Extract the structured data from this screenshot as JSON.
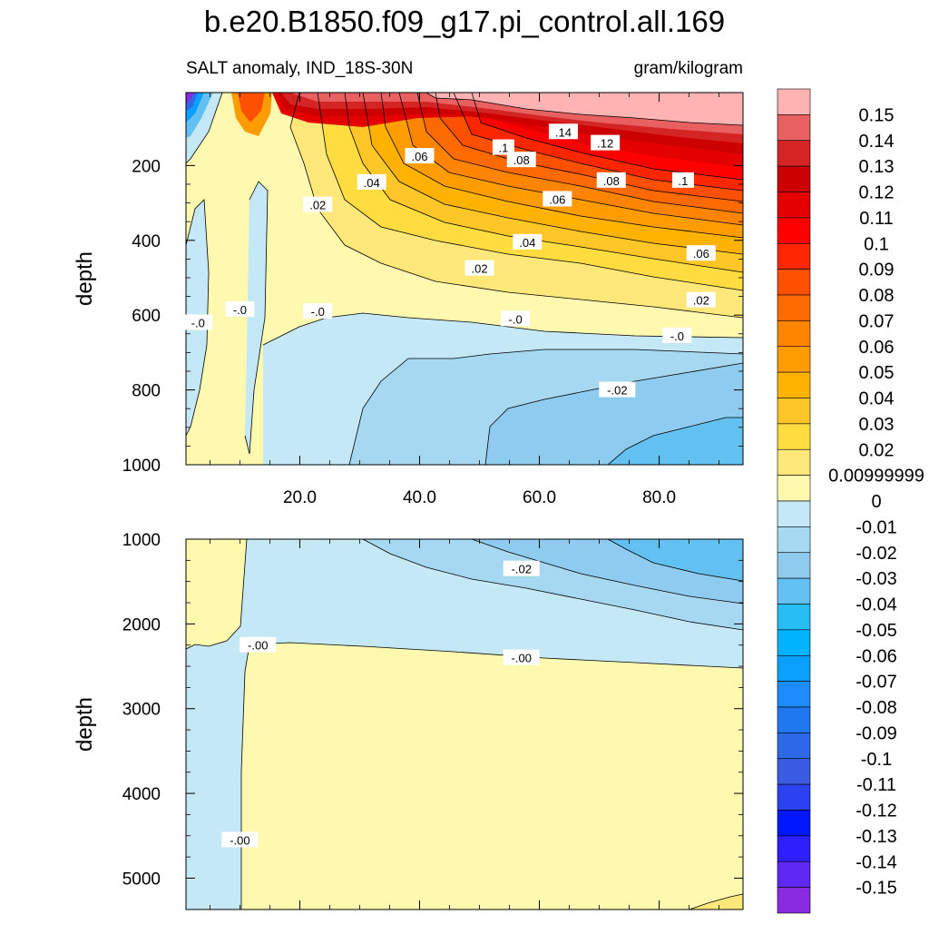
{
  "title": "b.e20.B1850.f09_g17.pi_control.all.169",
  "subtitle_left": "SALT anomaly, IND_18S-30N",
  "subtitle_right": "gram/kilogram",
  "chart_data": [
    {
      "type": "heatmap",
      "panel": "upper",
      "ylabel": "depth",
      "xlabel": "",
      "xlim": [
        1,
        94
      ],
      "ylim": [
        1000,
        5
      ],
      "x_ticks": [
        "20.0",
        "40.0",
        "60.0",
        "80.0"
      ],
      "x_tick_values": [
        20,
        40,
        60,
        80
      ],
      "y_ticks": [
        "200",
        "400",
        "600",
        "800",
        "1000"
      ],
      "y_tick_values": [
        200,
        400,
        600,
        800,
        1000
      ],
      "contour_labels": [
        {
          "text": ".14",
          "x": 64,
          "y": 110
        },
        {
          "text": ".12",
          "x": 71,
          "y": 140
        },
        {
          "text": ".1",
          "x": 54,
          "y": 152
        },
        {
          "text": ".08",
          "x": 57,
          "y": 185
        },
        {
          "text": ".06",
          "x": 40,
          "y": 175
        },
        {
          "text": ".04",
          "x": 32,
          "y": 245
        },
        {
          "text": ".02",
          "x": 23,
          "y": 305
        },
        {
          "text": ".08",
          "x": 72,
          "y": 240
        },
        {
          "text": ".1",
          "x": 84,
          "y": 240
        },
        {
          "text": ".06",
          "x": 63,
          "y": 290
        },
        {
          "text": ".04",
          "x": 58,
          "y": 405
        },
        {
          "text": ".06",
          "x": 87,
          "y": 435
        },
        {
          "text": ".02",
          "x": 50,
          "y": 475
        },
        {
          "text": ".02",
          "x": 87,
          "y": 560
        },
        {
          "text": "-.0",
          "x": 3,
          "y": 620
        },
        {
          "text": "-.0",
          "x": 10,
          "y": 585
        },
        {
          "text": "-.0",
          "x": 23,
          "y": 590
        },
        {
          "text": "-.0",
          "x": 56,
          "y": 610
        },
        {
          "text": "-.0",
          "x": 83,
          "y": 655
        },
        {
          "text": "-.02",
          "x": 73,
          "y": 800
        }
      ]
    },
    {
      "type": "heatmap",
      "panel": "lower",
      "ylabel": "depth",
      "xlabel": "",
      "xlim": [
        1,
        94
      ],
      "ylim": [
        5370,
        1000
      ],
      "y_ticks": [
        "1000",
        "2000",
        "3000",
        "4000",
        "5000"
      ],
      "y_tick_values": [
        1000,
        2000,
        3000,
        4000,
        5000
      ],
      "contour_labels": [
        {
          "text": "-.02",
          "x": 57,
          "y": 1350
        },
        {
          "text": "-.00",
          "x": 13,
          "y": 2250
        },
        {
          "text": "-.00",
          "x": 57,
          "y": 2400
        },
        {
          "text": "-.00",
          "x": 10,
          "y": 4550
        }
      ]
    }
  ],
  "colorbar": {
    "labels": [
      "0.15",
      "0.14",
      "0.13",
      "0.12",
      "0.11",
      "0.1",
      "0.09",
      "0.08",
      "0.07",
      "0.06",
      "0.05",
      "0.04",
      "0.03",
      "0.02",
      "0.00999999",
      "0",
      "-0.01",
      "-0.02",
      "-0.03",
      "-0.04",
      "-0.05",
      "-0.06",
      "-0.07",
      "-0.08",
      "-0.09",
      "-0.1",
      "-0.11",
      "-0.12",
      "-0.13",
      "-0.14",
      "-0.15"
    ],
    "colors": [
      "#ffb3b3",
      "#e86060",
      "#d42424",
      "#cc0000",
      "#e50000",
      "#ff0000",
      "#ff2600",
      "#ff5000",
      "#ff6a00",
      "#ff8400",
      "#ff9d00",
      "#ffb300",
      "#ffc628",
      "#ffdc40",
      "#ffe87a",
      "#fff9b0",
      "#c5e8f6",
      "#a6d9f1",
      "#8ecbee",
      "#62c1f0",
      "#26bdf5",
      "#00b3ff",
      "#0aa0ff",
      "#1c8cff",
      "#2078f0",
      "#2d69e6",
      "#3a5be2",
      "#2b42f0",
      "#0017ff",
      "#2f1fff",
      "#5f28f5",
      "#8a2be2"
    ]
  }
}
